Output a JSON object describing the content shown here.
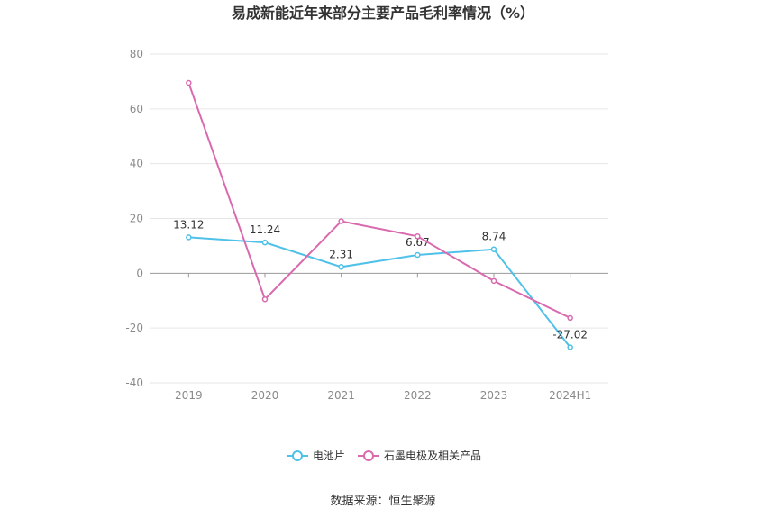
{
  "chart_data": {
    "type": "line",
    "title": "易成新能近年来部分主要产品毛利率情况（%）",
    "categories": [
      "2019",
      "2020",
      "2021",
      "2022",
      "2023",
      "2024H1"
    ],
    "y_ticks": [
      "80",
      "60",
      "40",
      "20",
      "0",
      "-20",
      "-40"
    ],
    "ylim": [
      -40,
      80
    ],
    "grid": true,
    "legend_position": "bottom",
    "series": [
      {
        "name": "电池片",
        "color": "#4fc1e9",
        "values": [
          13.12,
          11.24,
          2.31,
          6.67,
          8.74,
          -27.02
        ],
        "labels": [
          "13.12",
          "11.24",
          "2.31",
          "6.67",
          "8.74",
          "-27.02"
        ]
      },
      {
        "name": "石墨电极及相关产品",
        "color": "#d96aaf",
        "values": [
          69.5,
          -9.5,
          19.0,
          13.5,
          -2.8,
          -16.3
        ]
      }
    ]
  },
  "source": "数据来源：恒生聚源"
}
